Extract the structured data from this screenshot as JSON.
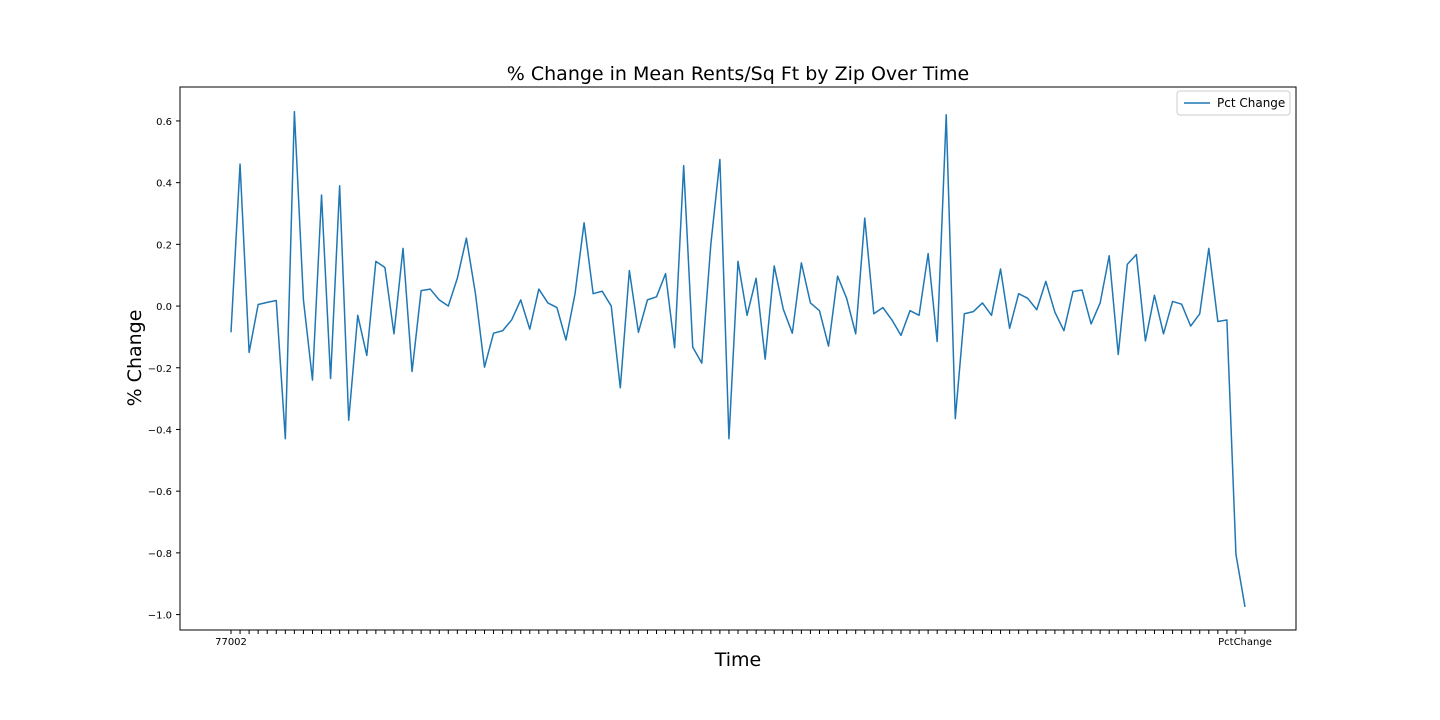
{
  "chart_data": {
    "type": "line",
    "title": "% Change in Mean Rents/Sq Ft by Zip Over Time",
    "xlabel": "Time",
    "ylabel": "% Change",
    "ylim": [
      -1.05,
      0.71
    ],
    "yticks": [
      -1.0,
      -0.8,
      -0.6,
      -0.4,
      -0.2,
      0.0,
      0.2,
      0.4,
      0.6
    ],
    "xtick_labels": {
      "first": "77002",
      "last": "PctChange"
    },
    "grid": false,
    "legend": "top-right",
    "series": [
      {
        "name": "Pct Change",
        "color": "#1f77b4",
        "values": [
          -0.085,
          0.46,
          -0.15,
          0.005,
          0.012,
          0.018,
          -0.43,
          0.63,
          0.02,
          -0.24,
          0.36,
          -0.235,
          0.39,
          -0.37,
          -0.03,
          -0.16,
          0.145,
          0.125,
          -0.09,
          0.187,
          -0.212,
          0.05,
          0.055,
          0.02,
          0.0,
          0.09,
          0.22,
          0.04,
          -0.198,
          -0.088,
          -0.08,
          -0.045,
          0.02,
          -0.075,
          0.055,
          0.01,
          -0.005,
          -0.11,
          0.04,
          0.27,
          0.04,
          0.048,
          0.0,
          -0.265,
          0.115,
          -0.085,
          0.02,
          0.03,
          0.105,
          -0.135,
          0.455,
          -0.133,
          -0.185,
          0.2,
          0.475,
          -0.43,
          0.145,
          -0.03,
          0.09,
          -0.172,
          0.13,
          -0.01,
          -0.088,
          0.14,
          0.01,
          -0.015,
          -0.13,
          0.097,
          0.025,
          -0.09,
          0.285,
          -0.025,
          -0.005,
          -0.045,
          -0.095,
          -0.015,
          -0.03,
          0.17,
          -0.115,
          0.62,
          -0.365,
          -0.025,
          -0.018,
          0.01,
          -0.03,
          0.12,
          -0.072,
          0.04,
          0.025,
          -0.012,
          0.08,
          -0.02,
          -0.08,
          0.047,
          0.052,
          -0.058,
          0.01,
          0.163,
          -0.157,
          0.135,
          0.167,
          -0.113,
          0.035,
          -0.09,
          0.015,
          0.006,
          -0.065,
          -0.025,
          0.187,
          -0.05,
          -0.045,
          -0.805,
          -0.975
        ]
      }
    ]
  }
}
